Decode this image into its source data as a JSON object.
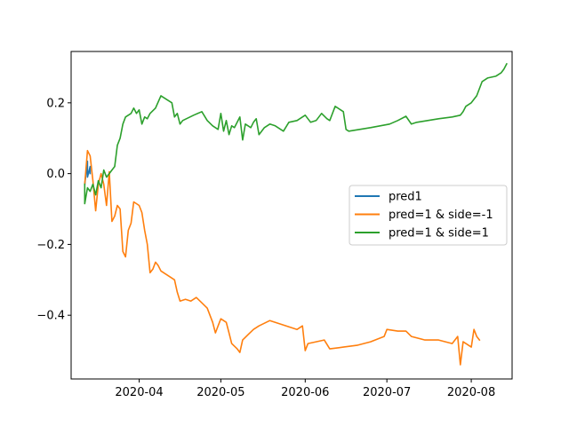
{
  "chart_data": {
    "type": "line",
    "title": "",
    "xlabel": "",
    "ylabel": "",
    "xlim": [
      "2020-03-07",
      "2020-08-16"
    ],
    "ylim": [
      -0.58,
      0.345
    ],
    "grid": false,
    "legend_placement": "center-right",
    "x_ticks": [
      {
        "date": "2020-04-01",
        "label": "2020-04"
      },
      {
        "date": "2020-05-01",
        "label": "2020-05"
      },
      {
        "date": "2020-06-01",
        "label": "2020-06"
      },
      {
        "date": "2020-07-01",
        "label": "2020-07"
      },
      {
        "date": "2020-08-01",
        "label": "2020-08"
      }
    ],
    "y_ticks": [
      {
        "value": 0.2,
        "label": "0.2"
      },
      {
        "value": 0.0,
        "label": "0.0"
      },
      {
        "value": -0.2,
        "label": "−0.2"
      },
      {
        "value": -0.4,
        "label": "−0.4"
      }
    ],
    "series": [
      {
        "name": "pred1",
        "color": "#1f77b4",
        "points": [
          [
            "2020-03-12",
            -0.03
          ],
          [
            "2020-03-13",
            0.035
          ],
          [
            "2020-03-13",
            -0.01
          ],
          [
            "2020-03-14",
            0.02
          ],
          [
            "2020-03-14",
            0.0
          ]
        ]
      },
      {
        "name": "pred=1 & side=-1",
        "color": "#ff7f0e",
        "points": [
          [
            "2020-03-12",
            -0.03
          ],
          [
            "2020-03-13",
            0.065
          ],
          [
            "2020-03-14",
            0.05
          ],
          [
            "2020-03-15",
            -0.02
          ],
          [
            "2020-03-16",
            -0.105
          ],
          [
            "2020-03-17",
            -0.03
          ],
          [
            "2020-03-18",
            0.0
          ],
          [
            "2020-03-19",
            -0.03
          ],
          [
            "2020-03-20",
            -0.09
          ],
          [
            "2020-03-21",
            0.005
          ],
          [
            "2020-03-22",
            -0.135
          ],
          [
            "2020-03-23",
            -0.12
          ],
          [
            "2020-03-24",
            -0.09
          ],
          [
            "2020-03-25",
            -0.1
          ],
          [
            "2020-03-26",
            -0.22
          ],
          [
            "2020-03-27",
            -0.235
          ],
          [
            "2020-03-28",
            -0.16
          ],
          [
            "2020-03-29",
            -0.14
          ],
          [
            "2020-03-30",
            -0.08
          ],
          [
            "2020-04-01",
            -0.09
          ],
          [
            "2020-04-02",
            -0.11
          ],
          [
            "2020-04-03",
            -0.16
          ],
          [
            "2020-04-04",
            -0.2
          ],
          [
            "2020-04-05",
            -0.28
          ],
          [
            "2020-04-06",
            -0.27
          ],
          [
            "2020-04-07",
            -0.25
          ],
          [
            "2020-04-08",
            -0.26
          ],
          [
            "2020-04-09",
            -0.275
          ],
          [
            "2020-04-12",
            -0.29
          ],
          [
            "2020-04-14",
            -0.3
          ],
          [
            "2020-04-15",
            -0.335
          ],
          [
            "2020-04-16",
            -0.36
          ],
          [
            "2020-04-18",
            -0.355
          ],
          [
            "2020-04-20",
            -0.36
          ],
          [
            "2020-04-22",
            -0.35
          ],
          [
            "2020-04-24",
            -0.365
          ],
          [
            "2020-04-26",
            -0.38
          ],
          [
            "2020-04-28",
            -0.42
          ],
          [
            "2020-04-29",
            -0.45
          ],
          [
            "2020-04-30",
            -0.43
          ],
          [
            "2020-05-01",
            -0.41
          ],
          [
            "2020-05-03",
            -0.42
          ],
          [
            "2020-05-04",
            -0.45
          ],
          [
            "2020-05-05",
            -0.48
          ],
          [
            "2020-05-07",
            -0.495
          ],
          [
            "2020-05-08",
            -0.505
          ],
          [
            "2020-05-09",
            -0.47
          ],
          [
            "2020-05-11",
            -0.455
          ],
          [
            "2020-05-13",
            -0.44
          ],
          [
            "2020-05-15",
            -0.43
          ],
          [
            "2020-05-19",
            -0.415
          ],
          [
            "2020-05-23",
            -0.425
          ],
          [
            "2020-05-27",
            -0.435
          ],
          [
            "2020-05-29",
            -0.44
          ],
          [
            "2020-05-31",
            -0.43
          ],
          [
            "2020-06-01",
            -0.5
          ],
          [
            "2020-06-02",
            -0.48
          ],
          [
            "2020-06-05",
            -0.475
          ],
          [
            "2020-06-08",
            -0.47
          ],
          [
            "2020-06-10",
            -0.495
          ],
          [
            "2020-06-15",
            -0.49
          ],
          [
            "2020-06-20",
            -0.485
          ],
          [
            "2020-06-25",
            -0.475
          ],
          [
            "2020-06-30",
            -0.46
          ],
          [
            "2020-07-01",
            -0.44
          ],
          [
            "2020-07-05",
            -0.445
          ],
          [
            "2020-07-08",
            -0.445
          ],
          [
            "2020-07-10",
            -0.46
          ],
          [
            "2020-07-15",
            -0.47
          ],
          [
            "2020-07-20",
            -0.47
          ],
          [
            "2020-07-25",
            -0.48
          ],
          [
            "2020-07-27",
            -0.46
          ],
          [
            "2020-07-28",
            -0.54
          ],
          [
            "2020-07-29",
            -0.475
          ],
          [
            "2020-07-30",
            -0.48
          ],
          [
            "2020-08-01",
            -0.49
          ],
          [
            "2020-08-02",
            -0.44
          ],
          [
            "2020-08-03",
            -0.46
          ],
          [
            "2020-08-04",
            -0.47
          ]
        ]
      },
      {
        "name": "pred=1 & side=1",
        "color": "#2ca02c",
        "points": [
          [
            "2020-03-12",
            -0.03
          ],
          [
            "2020-03-12",
            -0.085
          ],
          [
            "2020-03-13",
            -0.04
          ],
          [
            "2020-03-14",
            -0.05
          ],
          [
            "2020-03-15",
            -0.03
          ],
          [
            "2020-03-16",
            -0.06
          ],
          [
            "2020-03-17",
            -0.02
          ],
          [
            "2020-03-18",
            -0.04
          ],
          [
            "2020-03-19",
            0.01
          ],
          [
            "2020-03-20",
            -0.01
          ],
          [
            "2020-03-21",
            0.0
          ],
          [
            "2020-03-22",
            0.01
          ],
          [
            "2020-03-23",
            0.02
          ],
          [
            "2020-03-24",
            0.08
          ],
          [
            "2020-03-25",
            0.1
          ],
          [
            "2020-03-26",
            0.14
          ],
          [
            "2020-03-27",
            0.16
          ],
          [
            "2020-03-29",
            0.17
          ],
          [
            "2020-03-30",
            0.185
          ],
          [
            "2020-03-31",
            0.17
          ],
          [
            "2020-04-01",
            0.18
          ],
          [
            "2020-04-02",
            0.14
          ],
          [
            "2020-04-03",
            0.16
          ],
          [
            "2020-04-04",
            0.155
          ],
          [
            "2020-04-05",
            0.17
          ],
          [
            "2020-04-07",
            0.185
          ],
          [
            "2020-04-09",
            0.22
          ],
          [
            "2020-04-11",
            0.21
          ],
          [
            "2020-04-13",
            0.2
          ],
          [
            "2020-04-14",
            0.16
          ],
          [
            "2020-04-15",
            0.17
          ],
          [
            "2020-04-16",
            0.14
          ],
          [
            "2020-04-17",
            0.15
          ],
          [
            "2020-04-21",
            0.165
          ],
          [
            "2020-04-24",
            0.175
          ],
          [
            "2020-04-26",
            0.15
          ],
          [
            "2020-04-28",
            0.135
          ],
          [
            "2020-04-30",
            0.125
          ],
          [
            "2020-05-01",
            0.17
          ],
          [
            "2020-05-02",
            0.12
          ],
          [
            "2020-05-03",
            0.15
          ],
          [
            "2020-05-04",
            0.11
          ],
          [
            "2020-05-05",
            0.135
          ],
          [
            "2020-05-06",
            0.13
          ],
          [
            "2020-05-08",
            0.16
          ],
          [
            "2020-05-09",
            0.095
          ],
          [
            "2020-05-10",
            0.14
          ],
          [
            "2020-05-12",
            0.13
          ],
          [
            "2020-05-13",
            0.145
          ],
          [
            "2020-05-14",
            0.155
          ],
          [
            "2020-05-15",
            0.11
          ],
          [
            "2020-05-17",
            0.13
          ],
          [
            "2020-05-19",
            0.14
          ],
          [
            "2020-05-21",
            0.135
          ],
          [
            "2020-05-24",
            0.12
          ],
          [
            "2020-05-26",
            0.145
          ],
          [
            "2020-05-29",
            0.15
          ],
          [
            "2020-05-31",
            0.16
          ],
          [
            "2020-06-01",
            0.165
          ],
          [
            "2020-06-03",
            0.145
          ],
          [
            "2020-06-05",
            0.15
          ],
          [
            "2020-06-07",
            0.17
          ],
          [
            "2020-06-09",
            0.155
          ],
          [
            "2020-06-10",
            0.15
          ],
          [
            "2020-06-12",
            0.19
          ],
          [
            "2020-06-14",
            0.18
          ],
          [
            "2020-06-15",
            0.175
          ],
          [
            "2020-06-16",
            0.125
          ],
          [
            "2020-06-17",
            0.12
          ],
          [
            "2020-06-25",
            0.13
          ],
          [
            "2020-07-02",
            0.14
          ],
          [
            "2020-07-05",
            0.15
          ],
          [
            "2020-07-08",
            0.162
          ],
          [
            "2020-07-10",
            0.14
          ],
          [
            "2020-07-12",
            0.145
          ],
          [
            "2020-07-16",
            0.15
          ],
          [
            "2020-07-20",
            0.155
          ],
          [
            "2020-07-25",
            0.16
          ],
          [
            "2020-07-28",
            0.165
          ],
          [
            "2020-07-29",
            0.175
          ],
          [
            "2020-07-30",
            0.19
          ],
          [
            "2020-08-01",
            0.2
          ],
          [
            "2020-08-03",
            0.22
          ],
          [
            "2020-08-05",
            0.26
          ],
          [
            "2020-08-07",
            0.27
          ],
          [
            "2020-08-10",
            0.275
          ],
          [
            "2020-08-12",
            0.285
          ],
          [
            "2020-08-13",
            0.295
          ],
          [
            "2020-08-14",
            0.31
          ]
        ]
      }
    ]
  }
}
